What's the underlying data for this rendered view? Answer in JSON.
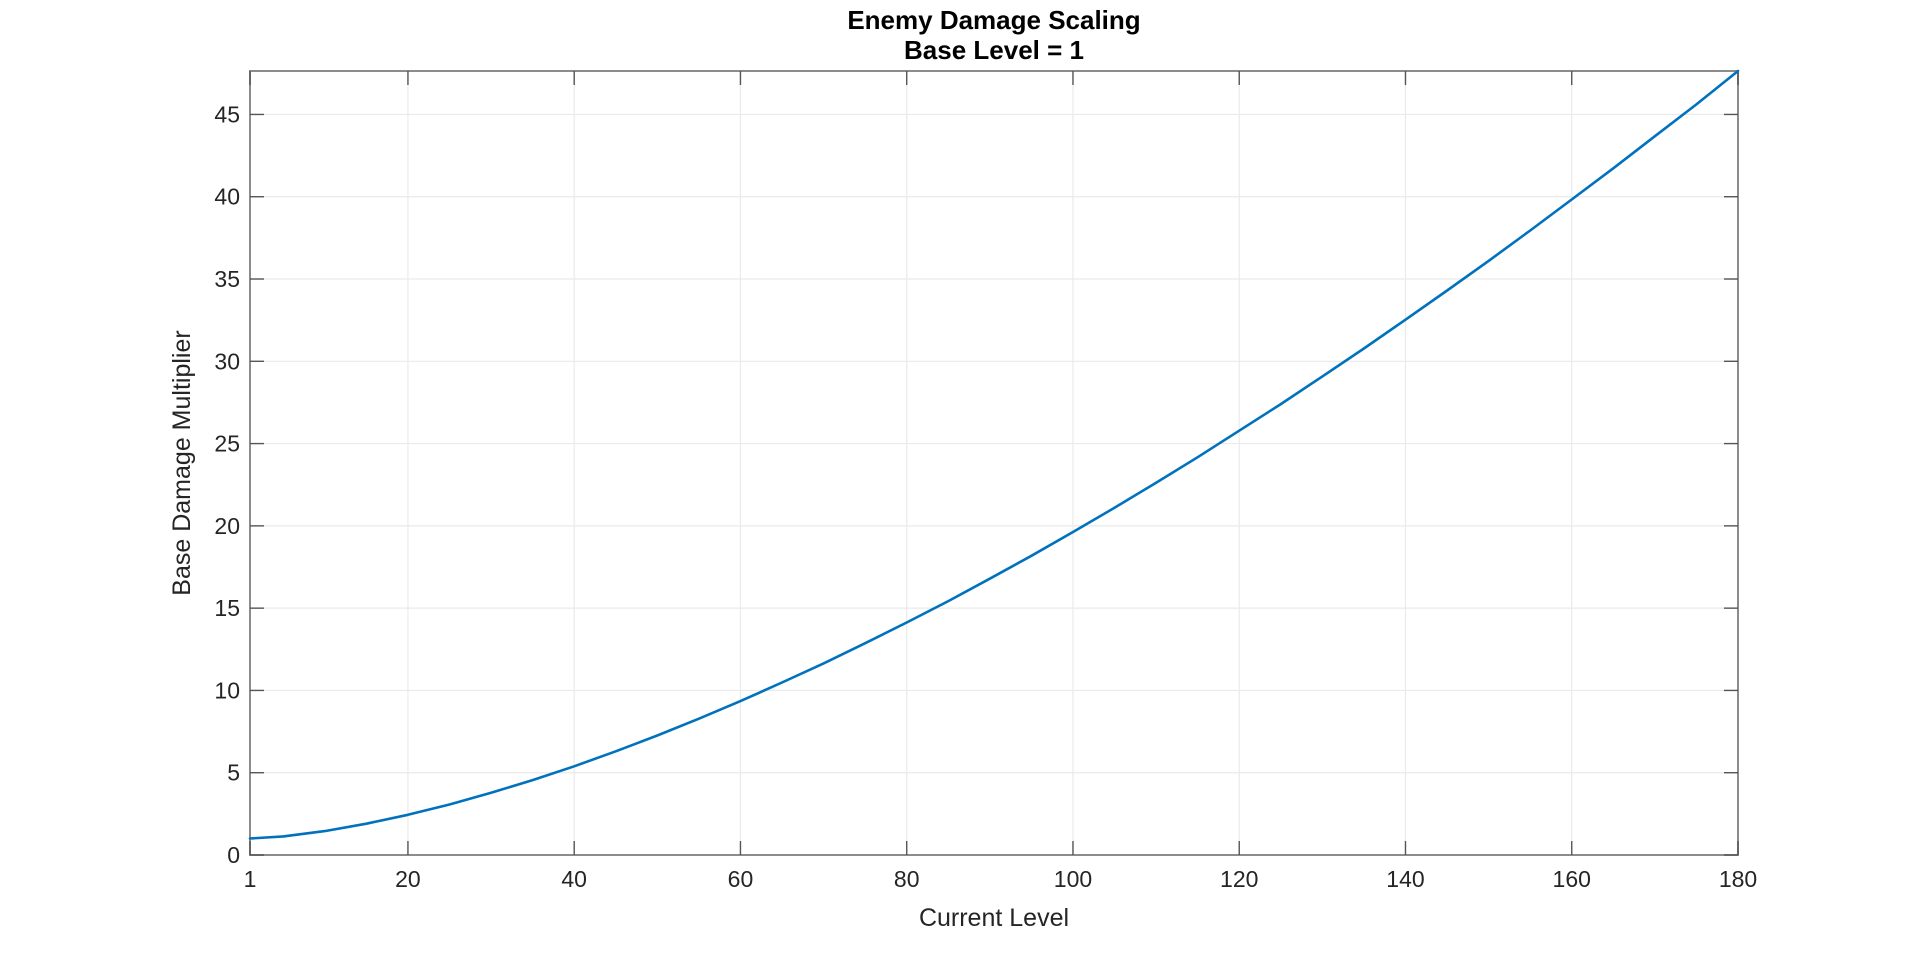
{
  "figure": {
    "background": "#ffffff"
  },
  "chart_data": {
    "type": "line",
    "title": "Enemy Damage Scaling",
    "subtitle": "Base Level = 1",
    "xlabel": "Current Level",
    "ylabel": "Base Damage Multiplier",
    "xlim": [
      1,
      180
    ],
    "ylim": [
      0,
      47.64
    ],
    "xticks": [
      1,
      20,
      40,
      60,
      80,
      100,
      120,
      140,
      160,
      180
    ],
    "yticks": [
      0,
      5,
      10,
      15,
      20,
      25,
      30,
      35,
      40,
      45
    ],
    "grid": true,
    "legend": "none",
    "series": [
      {
        "name": "base-damage-multiplier",
        "color": "#0072BD",
        "x": [
          1,
          5,
          10,
          15,
          20,
          25,
          30,
          35,
          40,
          45,
          50,
          55,
          60,
          65,
          70,
          75,
          80,
          85,
          90,
          95,
          100,
          105,
          110,
          115,
          120,
          125,
          130,
          135,
          140,
          145,
          150,
          155,
          160,
          165,
          170,
          175,
          180
        ],
        "y": [
          1.0,
          1.13,
          1.45,
          1.9,
          2.44,
          3.07,
          3.78,
          4.55,
          5.39,
          6.3,
          7.26,
          8.28,
          9.35,
          10.48,
          11.64,
          12.87,
          14.13,
          15.43,
          16.79,
          18.18,
          19.63,
          21.1,
          22.62,
          24.17,
          25.78,
          27.4,
          29.08,
          30.78,
          32.53,
          34.3,
          36.1,
          37.95,
          39.83,
          41.73,
          43.68,
          45.61,
          47.64
        ]
      }
    ],
    "colors": {
      "line": "#0072BD",
      "grid": "#eaeaea",
      "box": "#8c8c8c",
      "tick": "#555555",
      "text": "#252525",
      "title": "#000000"
    }
  }
}
